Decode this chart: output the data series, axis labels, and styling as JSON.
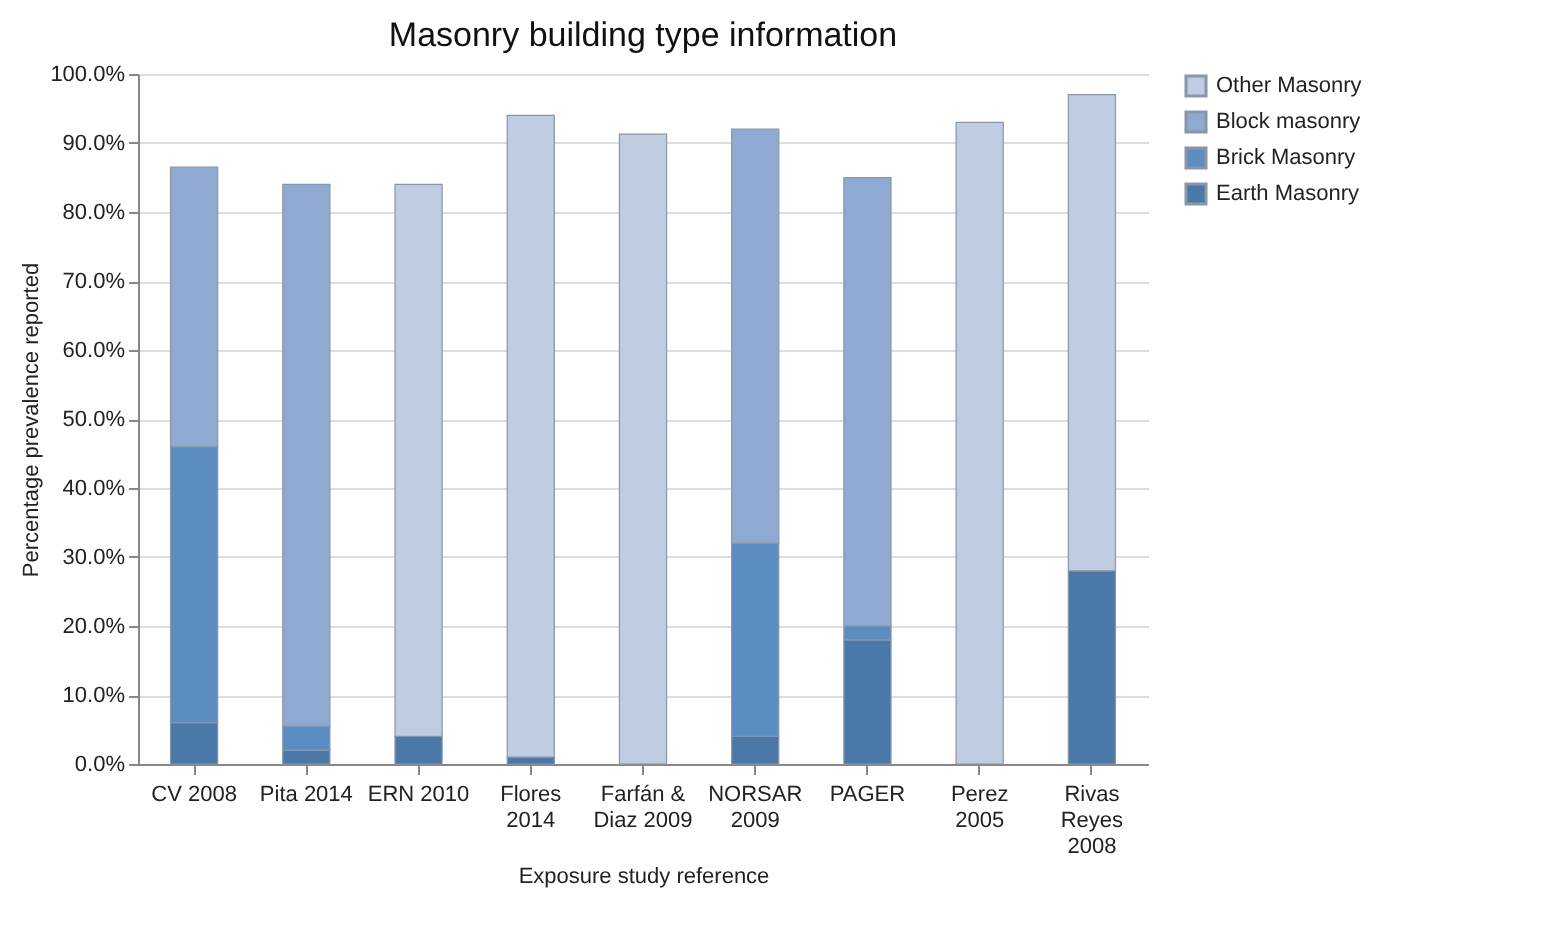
{
  "chart_data": {
    "type": "bar",
    "title": "Masonry building type information",
    "xlabel": "Exposure study reference",
    "ylabel": "Percentage prevalence reported",
    "categories": [
      "CV 2008",
      "Pita 2014",
      "ERN 2010",
      "Flores 2014",
      "Farfán & Diaz 2009",
      "NORSAR 2009",
      "PAGER",
      "Perez 2005",
      "Rivas Reyes 2008"
    ],
    "stacked": true,
    "series": [
      {
        "name": "Earth Masonry",
        "color": "#4a78a8",
        "values": [
          6,
          2,
          4,
          1,
          null,
          4,
          18,
          null,
          28
        ]
      },
      {
        "name": "Brick Masonry",
        "color": "#5b8cc2",
        "values": [
          40,
          3.5,
          null,
          null,
          null,
          28,
          2,
          null,
          null
        ]
      },
      {
        "name": "Block masonry",
        "color": "#8eaad3",
        "values": [
          40.5,
          78.5,
          null,
          null,
          null,
          60,
          65,
          null,
          null
        ]
      },
      {
        "name": "Other Masonry",
        "color": "#bfcce2",
        "values": [
          null,
          null,
          80,
          93,
          91.3,
          null,
          null,
          93,
          69
        ]
      }
    ],
    "ylim": [
      0,
      100
    ],
    "yticks": [
      {
        "value": 0,
        "label": "0.0%"
      },
      {
        "value": 10,
        "label": "10.0%"
      },
      {
        "value": 20,
        "label": "20.0%"
      },
      {
        "value": 30,
        "label": "30.0%"
      },
      {
        "value": 40,
        "label": "40.0%"
      },
      {
        "value": 50,
        "label": "50.0%"
      },
      {
        "value": 60,
        "label": "60.0%"
      },
      {
        "value": 70,
        "label": "70.0%"
      },
      {
        "value": 80,
        "label": "80.0%"
      },
      {
        "value": 90,
        "label": "90.0%"
      },
      {
        "value": 100,
        "label": "100.0%"
      }
    ],
    "grid": "y",
    "legend": "right"
  }
}
